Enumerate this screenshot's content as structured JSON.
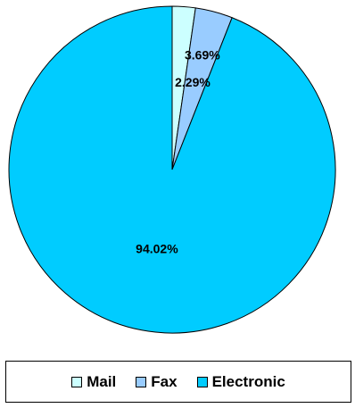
{
  "chart_data": {
    "type": "pie",
    "title": "",
    "start": "top",
    "direction": "clockwise",
    "categories": [
      "Mail",
      "Fax",
      "Electronic"
    ],
    "values": [
      2.29,
      3.69,
      94.02
    ],
    "data_labels": [
      "2.29%",
      "3.69%",
      "94.02%"
    ],
    "colors": [
      "#ccffff",
      "#99ccff",
      "#00ccff"
    ],
    "legend_position": "bottom",
    "legend": [
      {
        "label": "Mail",
        "color": "#ccffff"
      },
      {
        "label": "Fax",
        "color": "#99ccff"
      },
      {
        "label": "Electronic",
        "color": "#00ccff"
      }
    ]
  }
}
